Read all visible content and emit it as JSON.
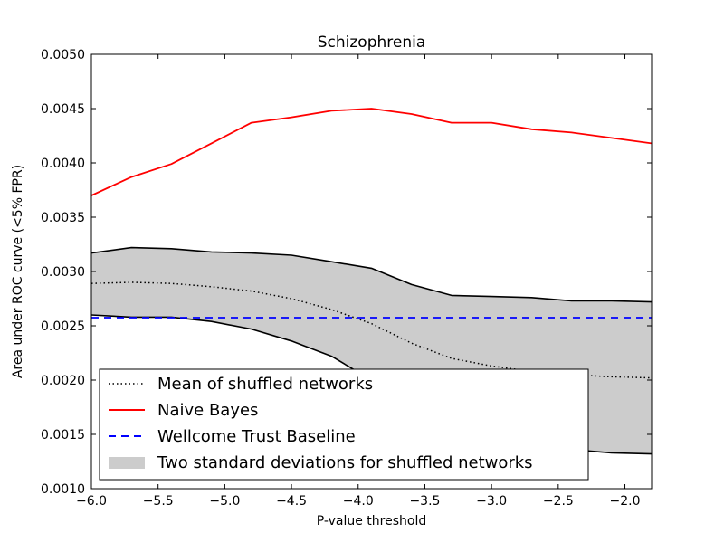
{
  "chart_data": {
    "type": "line",
    "title": "Schizophrenia",
    "xlabel": "P-value threshold",
    "ylabel": "Area under ROC curve (<5% FPR)",
    "xlim": [
      -6.0,
      -1.8
    ],
    "ylim": [
      0.001,
      0.005
    ],
    "xticks": [
      -6.0,
      -5.5,
      -5.0,
      -4.5,
      -4.0,
      -3.5,
      -3.0,
      -2.5,
      -2.0
    ],
    "xtick_labels": [
      "−6.0",
      "−5.5",
      "−5.0",
      "−4.5",
      "−4.0",
      "−3.5",
      "−3.0",
      "−2.5",
      "−2.0"
    ],
    "yticks": [
      0.001,
      0.0015,
      0.002,
      0.0025,
      0.003,
      0.0035,
      0.004,
      0.0045,
      0.005
    ],
    "ytick_labels": [
      "0.0010",
      "0.0015",
      "0.0020",
      "0.0025",
      "0.0030",
      "0.0035",
      "0.0040",
      "0.0045",
      "0.0050"
    ],
    "grid": false,
    "legend_placement": "lower-left",
    "x": [
      -6.0,
      -5.7,
      -5.4,
      -5.1,
      -4.8,
      -4.5,
      -4.2,
      -3.9,
      -3.6,
      -3.3,
      -3.0,
      -2.7,
      -2.4,
      -2.1,
      -1.8
    ],
    "series": [
      {
        "name": "Mean of shuffled networks",
        "style": "dotted",
        "color": "#000000",
        "values": [
          0.00289,
          0.0029,
          0.00289,
          0.00286,
          0.00282,
          0.00275,
          0.00265,
          0.00252,
          0.00234,
          0.0022,
          0.00213,
          0.00208,
          0.00205,
          0.00203,
          0.00202
        ]
      },
      {
        "name": "Naive Bayes",
        "style": "solid",
        "color": "#ff0000",
        "values": [
          0.0037,
          0.00387,
          0.00399,
          0.00418,
          0.00437,
          0.00442,
          0.00448,
          0.0045,
          0.00445,
          0.00437,
          0.00437,
          0.00431,
          0.00428,
          0.00423,
          0.00418
        ]
      },
      {
        "name": "Wellcome Trust Baseline",
        "style": "dashed",
        "color": "#0000ff",
        "values": [
          0.002575,
          0.002575,
          0.002575,
          0.002575,
          0.002575,
          0.002575,
          0.002575,
          0.002575,
          0.002575,
          0.002575,
          0.002575,
          0.002575,
          0.002575,
          0.002575,
          0.002575
        ]
      }
    ],
    "band": {
      "name": "Two standard deviations for shuffled networks",
      "color": "#cccccc",
      "upper": [
        0.00317,
        0.00322,
        0.00321,
        0.00318,
        0.00317,
        0.00315,
        0.00309,
        0.00303,
        0.00288,
        0.00278,
        0.00277,
        0.00276,
        0.00273,
        0.00273,
        0.00272
      ],
      "lower": [
        0.0026,
        0.00258,
        0.00258,
        0.00254,
        0.00247,
        0.00236,
        0.00222,
        0.002,
        0.0018,
        0.00162,
        0.0015,
        0.00142,
        0.00136,
        0.00133,
        0.00132
      ]
    }
  }
}
